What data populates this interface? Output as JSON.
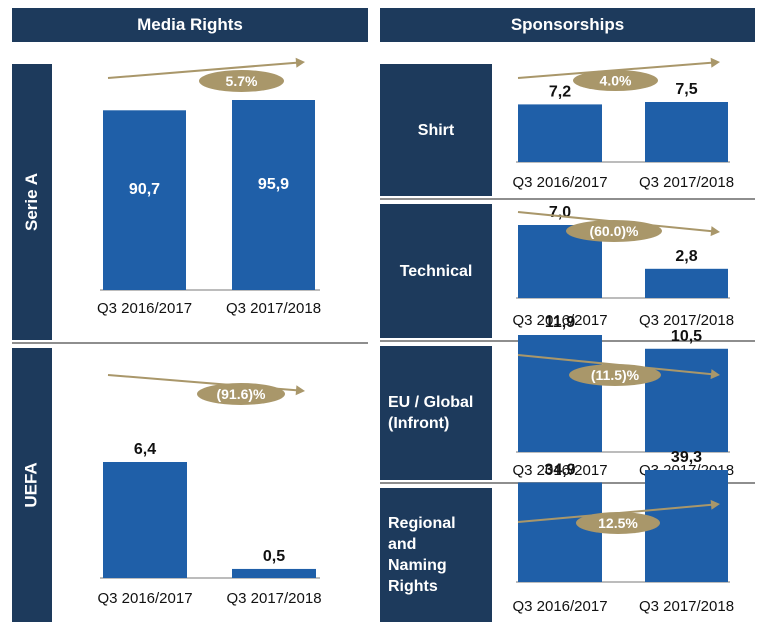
{
  "headers": {
    "left": "Media Rights",
    "right": "Sponsorships"
  },
  "chart_data": [
    {
      "type": "bar",
      "section": "Media Rights",
      "label": "Serie A",
      "categories": [
        "Q3 2016/2017",
        "Q3 2017/2018"
      ],
      "values": [
        90.7,
        95.9
      ],
      "value_labels": [
        "90,7",
        "95,9"
      ],
      "growth": "5.7%",
      "trend": "up",
      "value_position": "inside",
      "ylim": [
        0,
        100
      ]
    },
    {
      "type": "bar",
      "section": "Media Rights",
      "label": "UEFA",
      "categories": [
        "Q3 2016/2017",
        "Q3 2017/2018"
      ],
      "values": [
        6.4,
        0.5
      ],
      "value_labels": [
        "6,4",
        "0,5"
      ],
      "growth": "(91.6)%",
      "trend": "down",
      "value_position": "above",
      "ylim": [
        0,
        12
      ]
    },
    {
      "type": "bar",
      "section": "Sponsorships",
      "label": "Shirt",
      "categories": [
        "Q3 2016/2017",
        "Q3 2017/2018"
      ],
      "values": [
        7.2,
        7.5
      ],
      "value_labels": [
        "7,2",
        "7,5"
      ],
      "growth": "4.0%",
      "trend": "up",
      "value_position": "above",
      "ylim": [
        0,
        15
      ]
    },
    {
      "type": "bar",
      "section": "Sponsorships",
      "label": "Technical",
      "categories": [
        "Q3 2016/2017",
        "Q3 2017/2018"
      ],
      "values": [
        7.0,
        2.8
      ],
      "value_labels": [
        "7,0",
        "2,8"
      ],
      "growth": "(60.0)%",
      "trend": "down",
      "value_position": "above",
      "ylim": [
        0,
        15
      ]
    },
    {
      "type": "bar",
      "section": "Sponsorships",
      "label": "EU / Global (Infront)",
      "label_lines": [
        "EU / Global",
        "(Infront)"
      ],
      "categories": [
        "Q3 2016/2017",
        "Q3 2017/2018"
      ],
      "values": [
        11.9,
        10.5
      ],
      "value_labels": [
        "11,9",
        "10,5"
      ],
      "growth": "(11.5)%",
      "trend": "down",
      "value_position": "above",
      "ylim": [
        0,
        24
      ]
    },
    {
      "type": "bar",
      "section": "Sponsorships",
      "label": "Regional and Naming Rights",
      "label_lines": [
        "Regional and",
        "Naming",
        "Rights"
      ],
      "categories": [
        "Q3 2016/2017",
        "Q3 2017/2018"
      ],
      "values": [
        34.9,
        39.3
      ],
      "value_labels": [
        "34,9",
        "39,3"
      ],
      "growth": "12.5%",
      "trend": "up",
      "value_position": "above",
      "ylim": [
        0,
        100
      ]
    }
  ],
  "colors": {
    "navy": "#1d3a5c",
    "bar": "#1f5fa8",
    "accent": "#a9976a",
    "divider": "#8e8e8e"
  }
}
